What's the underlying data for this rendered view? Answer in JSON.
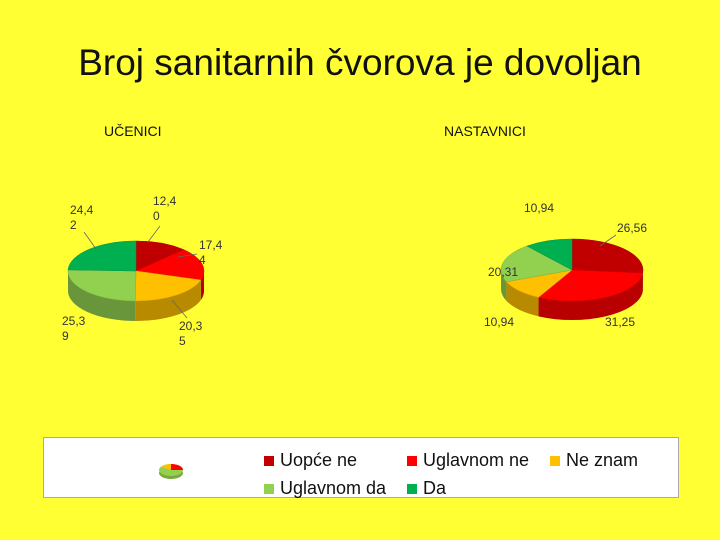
{
  "slide": {
    "title": "Broj sanitarnih čvorova je dovoljan"
  },
  "chart_data": [
    {
      "type": "pie",
      "title": "UČENICI",
      "categories": [
        "Uopće ne",
        "Uglavnom ne",
        "Ne znam",
        "Uglavnom da",
        "Da"
      ],
      "values": [
        12.4,
        17.44,
        20.35,
        25.39,
        24.42
      ],
      "labels": [
        [
          "12,4",
          "0"
        ],
        [
          "17,4",
          "4"
        ],
        [
          "20,3",
          "5"
        ],
        [
          "25,3",
          "9"
        ],
        [
          "24,4",
          "2"
        ]
      ],
      "colors": [
        "#c00000",
        "#ff0000",
        "#ffc000",
        "#92d050",
        "#00b050"
      ]
    },
    {
      "type": "pie",
      "title": "NASTAVNICI",
      "categories": [
        "Uopće ne",
        "Uglavnom ne",
        "Ne znam",
        "Uglavnom da",
        "Da"
      ],
      "values": [
        26.56,
        31.25,
        10.94,
        20.31,
        10.94
      ],
      "labels": [
        [
          "26,56"
        ],
        [
          "31,25"
        ],
        [
          "10,94"
        ],
        [
          "20,31"
        ],
        [
          "10,94"
        ]
      ],
      "colors": [
        "#c00000",
        "#ff0000",
        "#ffc000",
        "#92d050",
        "#00b050"
      ]
    }
  ],
  "legend": {
    "items": [
      {
        "label": "Uopće ne",
        "color": "#c00000"
      },
      {
        "label": "Uglavnom ne",
        "color": "#ff0000"
      },
      {
        "label": "Ne znam",
        "color": "#ffc000"
      },
      {
        "label": "Uglavnom da",
        "color": "#92d050"
      },
      {
        "label": "Da",
        "color": "#00b050"
      }
    ]
  }
}
